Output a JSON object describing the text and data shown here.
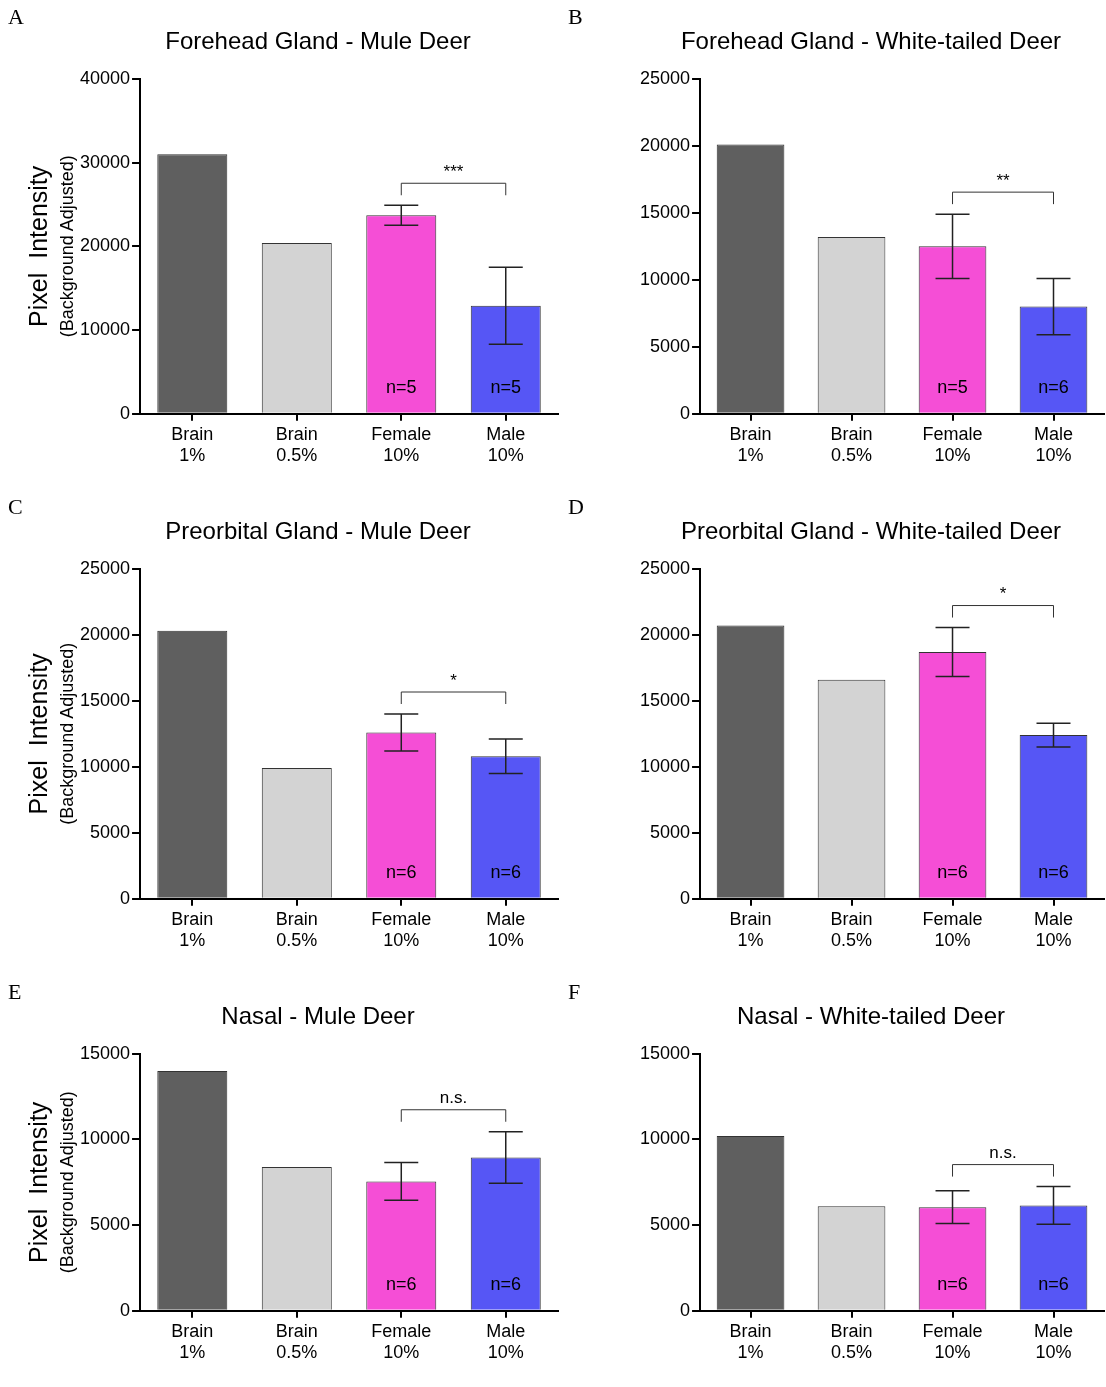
{
  "chart_data": [
    {
      "type": "bar",
      "title": "Forehead Gland - Mule Deer",
      "ylabel": "Pixel  Intensity\n(Background Adjusted)",
      "categories": [
        "Brain 1%",
        "Brain 0.5%",
        "Female 10%",
        "Male 10%"
      ],
      "values": [
        31000,
        20400,
        23700,
        12900
      ],
      "colors": [
        "#5f5f5f",
        "#d3d3d3",
        "#f54ed6",
        "#5656f5"
      ],
      "errors": [
        null,
        null,
        1200,
        4600
      ],
      "ylim": [
        0,
        40000
      ],
      "yticks": [
        0,
        10000,
        20000,
        30000,
        40000
      ],
      "annotations": [
        "A",
        "***",
        "n=5",
        "n=5"
      ]
    },
    {
      "type": "bar",
      "title": "Forehead Gland - White-tailed Deer",
      "categories": [
        "Brain 1%",
        "Brain 0.5%",
        "Female 10%",
        "Male 10%"
      ],
      "values": [
        20100,
        13200,
        12500,
        8000
      ],
      "colors": [
        "#5f5f5f",
        "#d3d3d3",
        "#f54ed6",
        "#5656f5"
      ],
      "errors": [
        null,
        null,
        2400,
        2100
      ],
      "ylim": [
        0,
        25000
      ],
      "yticks": [
        0,
        5000,
        10000,
        15000,
        20000,
        25000
      ],
      "annotations": [
        "B",
        "**",
        "n=5",
        "n=6"
      ]
    },
    {
      "type": "bar",
      "title": "Preorbital Gland - Mule Deer",
      "ylabel": "Pixel  Intensity\n(Background Adjusted)",
      "categories": [
        "Brain 1%",
        "Brain 0.5%",
        "Female 10%",
        "Male 10%"
      ],
      "values": [
        20300,
        9900,
        12600,
        10800
      ],
      "colors": [
        "#5f5f5f",
        "#d3d3d3",
        "#f54ed6",
        "#5656f5"
      ],
      "errors": [
        null,
        null,
        1400,
        1300
      ],
      "ylim": [
        0,
        25000
      ],
      "yticks": [
        0,
        5000,
        10000,
        15000,
        20000,
        25000
      ],
      "annotations": [
        "C",
        "*",
        "n=6",
        "n=6"
      ]
    },
    {
      "type": "bar",
      "title": "Preorbital Gland - White-tailed Deer",
      "categories": [
        "Brain 1%",
        "Brain 0.5%",
        "Female 10%",
        "Male 10%"
      ],
      "values": [
        20700,
        16600,
        18700,
        12400
      ],
      "colors": [
        "#5f5f5f",
        "#d3d3d3",
        "#f54ed6",
        "#5656f5"
      ],
      "errors": [
        null,
        null,
        1850,
        900
      ],
      "ylim": [
        0,
        25000
      ],
      "yticks": [
        0,
        5000,
        10000,
        15000,
        20000,
        25000
      ],
      "annotations": [
        "D",
        "*",
        "n=6",
        "n=6"
      ]
    },
    {
      "type": "bar",
      "title": "Nasal - Mule Deer",
      "ylabel": "Pixel  Intensity\n(Background Adjusted)",
      "categories": [
        "Brain 1%",
        "Brain 0.5%",
        "Female 10%",
        "Male 10%"
      ],
      "values": [
        14000,
        8400,
        7550,
        8950
      ],
      "colors": [
        "#5f5f5f",
        "#d3d3d3",
        "#f54ed6",
        "#5656f5"
      ],
      "errors": [
        null,
        null,
        1100,
        1500
      ],
      "ylim": [
        0,
        15000
      ],
      "yticks": [
        0,
        5000,
        10000,
        15000
      ],
      "annotations": [
        "E",
        "n.s.",
        "n=6",
        "n=6"
      ]
    },
    {
      "type": "bar",
      "title": "Nasal - White-tailed Deer",
      "categories": [
        "Brain 1%",
        "Brain 0.5%",
        "Female 10%",
        "Male 10%"
      ],
      "values": [
        10200,
        6100,
        6050,
        6150
      ],
      "colors": [
        "#5f5f5f",
        "#d3d3d3",
        "#f54ed6",
        "#5656f5"
      ],
      "errors": [
        null,
        null,
        950,
        1100
      ],
      "ylim": [
        0,
        15000
      ],
      "yticks": [
        0,
        5000,
        10000,
        15000
      ],
      "annotations": [
        "F",
        "n.s.",
        "n=6",
        "n=6"
      ]
    }
  ]
}
